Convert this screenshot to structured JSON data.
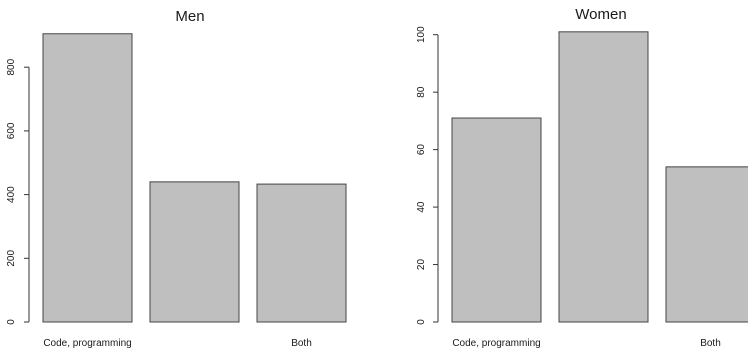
{
  "chart_data": [
    {
      "type": "bar",
      "title": "Men",
      "categories": [
        "Code, programming",
        "",
        "Both"
      ],
      "values": [
        905,
        440,
        433
      ],
      "xlabel": "",
      "ylabel": "",
      "ylim": [
        0,
        900
      ],
      "yticks": [
        0,
        200,
        400,
        600,
        800
      ],
      "grid": false,
      "colors": {
        "bar_fill": "#bfbfbf",
        "bar_stroke": "#444444"
      }
    },
    {
      "type": "bar",
      "title": "Women",
      "categories": [
        "Code, programming",
        "",
        "Both"
      ],
      "values": [
        71,
        101,
        54
      ],
      "xlabel": "",
      "ylabel": "",
      "ylim": [
        0,
        100
      ],
      "yticks": [
        0,
        20,
        40,
        60,
        80,
        100
      ],
      "grid": false,
      "colors": {
        "bar_fill": "#bfbfbf",
        "bar_stroke": "#444444"
      }
    }
  ]
}
